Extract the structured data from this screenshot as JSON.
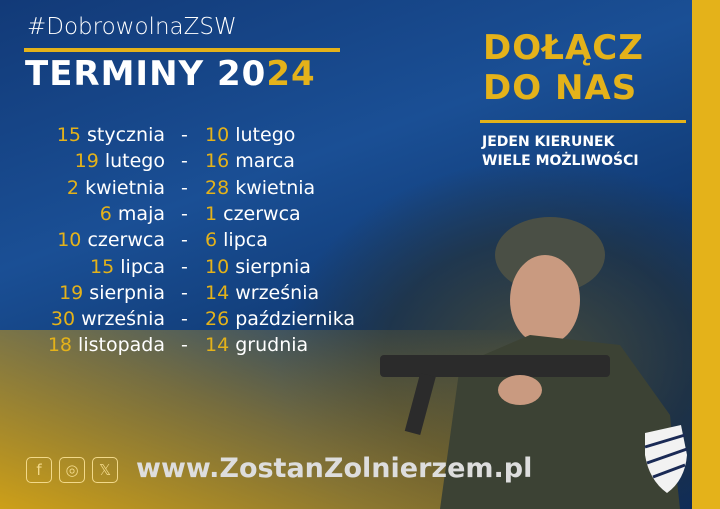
{
  "hashtag": "#DobrowolnaZSW",
  "title": {
    "text": "TERMINY 20",
    "year_highlight": "24"
  },
  "dates": [
    {
      "start_day": "15",
      "start_month": "stycznia",
      "end_day": "10",
      "end_month": "lutego"
    },
    {
      "start_day": "19",
      "start_month": "lutego",
      "end_day": "16",
      "end_month": "marca"
    },
    {
      "start_day": "2",
      "start_month": "kwietnia",
      "end_day": "28",
      "end_month": "kwietnia"
    },
    {
      "start_day": "6",
      "start_month": "maja",
      "end_day": "1",
      "end_month": "czerwca"
    },
    {
      "start_day": "10",
      "start_month": "czerwca",
      "end_day": "6",
      "end_month": "lipca"
    },
    {
      "start_day": "15",
      "start_month": "lipca",
      "end_day": "10",
      "end_month": "sierpnia"
    },
    {
      "start_day": "19",
      "start_month": "sierpnia",
      "end_day": "14",
      "end_month": "września"
    },
    {
      "start_day": "30",
      "start_month": "września",
      "end_day": "26",
      "end_month": "października"
    },
    {
      "start_day": "18",
      "start_month": "listopada",
      "end_day": "14",
      "end_month": "grudnia"
    }
  ],
  "dash": "-",
  "headline": {
    "line1": "DOŁĄCZ",
    "line2": "DO NAS"
  },
  "tagline": {
    "line1": "JEDEN KIERUNEK",
    "line2": "WIELE MOŻLIWOŚCI"
  },
  "social": {
    "facebook": "f",
    "instagram": "◎",
    "x": "𝕏"
  },
  "url": "www.ZostanZolnierzem.pl",
  "colors": {
    "accent": "#e4b21a",
    "background": "#123a78"
  }
}
